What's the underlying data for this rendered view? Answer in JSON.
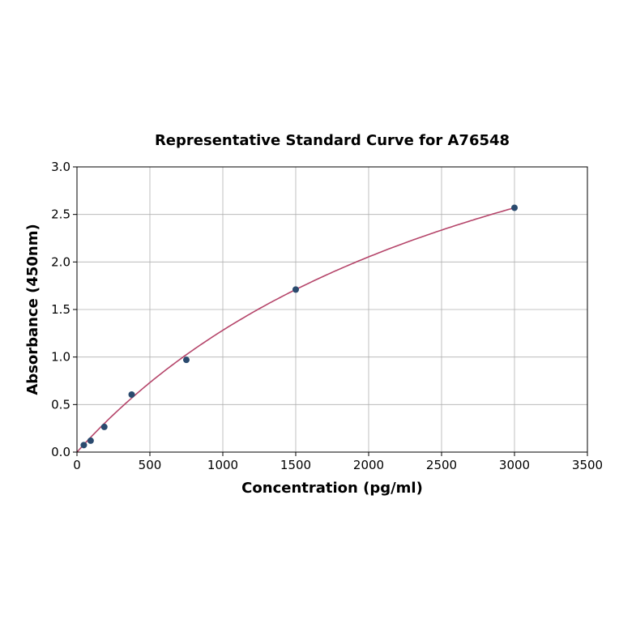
{
  "chart_data": {
    "type": "scatter",
    "title": "Representative Standard Curve for A76548",
    "xlabel": "Concentration (pg/ml)",
    "ylabel": "Absorbance (450nm)",
    "xlim": [
      0,
      3500
    ],
    "ylim": [
      0,
      3.0
    ],
    "xticks": [
      "0",
      "500",
      "1000",
      "1500",
      "2000",
      "2500",
      "3000",
      "3500"
    ],
    "yticks": [
      "0.0",
      "0.5",
      "1.0",
      "1.5",
      "2.0",
      "2.5",
      "3.0"
    ],
    "grid": true,
    "series": [
      {
        "type": "scatter",
        "x": [
          46.875,
          93.75,
          187.5,
          375,
          750,
          1500,
          3000
        ],
        "y": [
          0.074,
          0.12,
          0.265,
          0.605,
          0.97,
          1.71,
          2.57
        ],
        "color": "#2a4a6e"
      },
      {
        "type": "line",
        "fit": "smooth curve through standards",
        "color": "#b5456a"
      }
    ]
  }
}
